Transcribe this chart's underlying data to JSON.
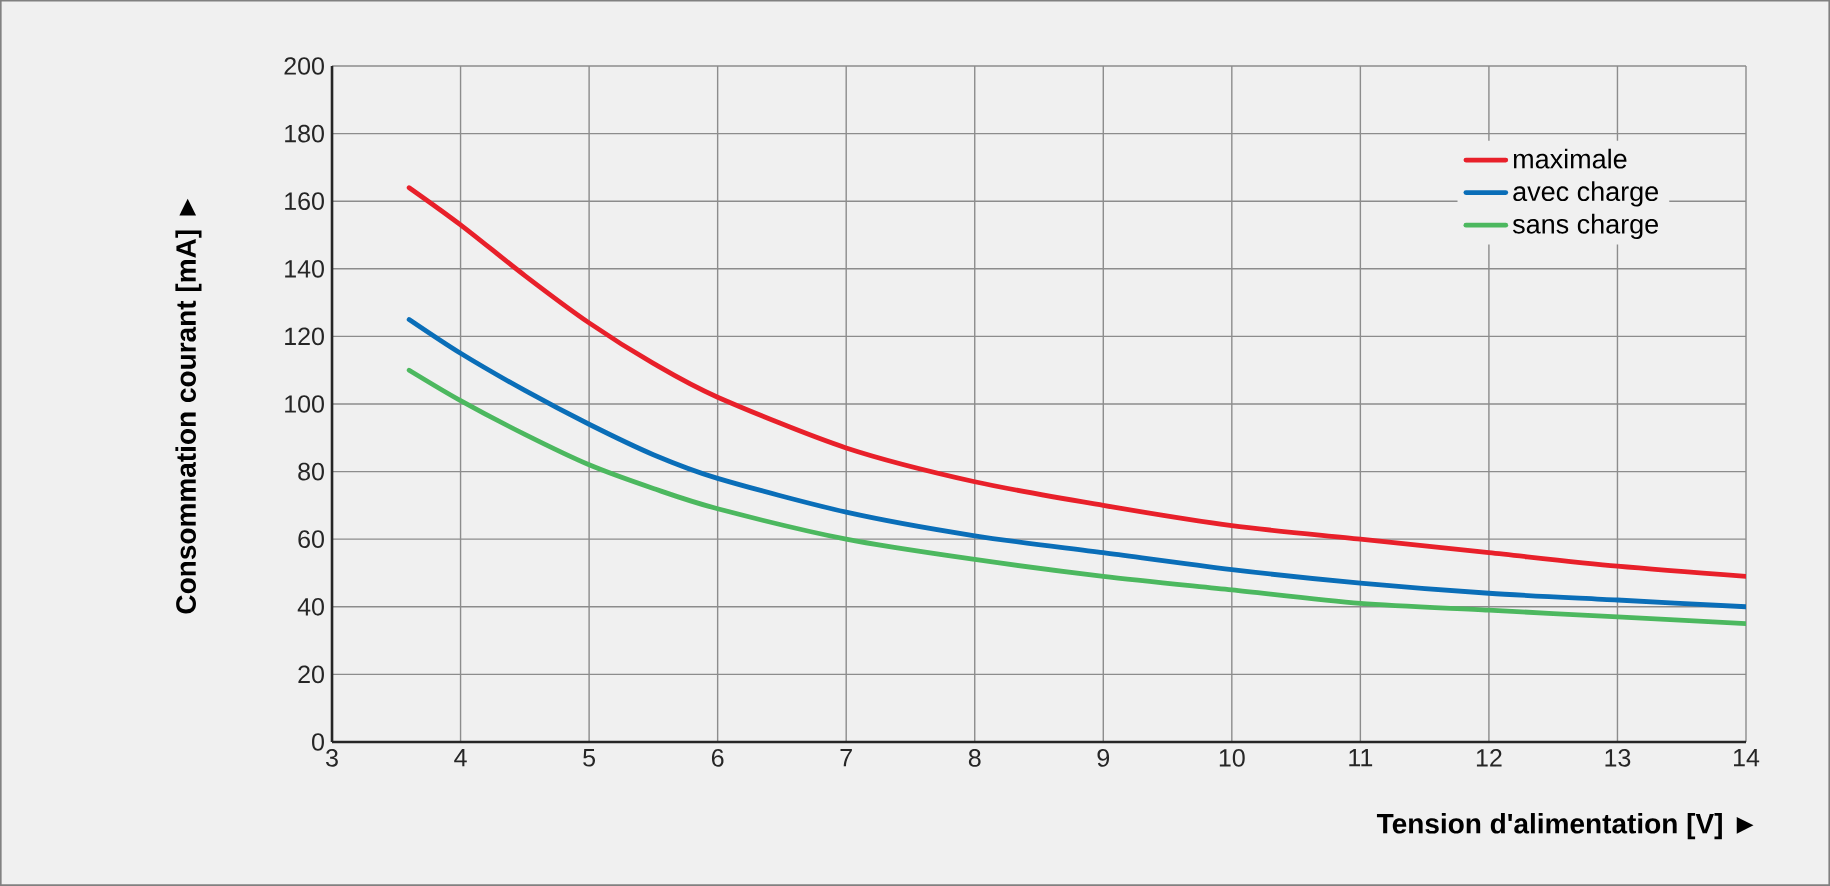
{
  "chart_data": {
    "type": "line",
    "xlabel": "Tension d'alimentation [V] ►",
    "ylabel": "Consommation courant [mA] ►",
    "x": [
      3.6,
      4,
      4.5,
      5,
      5.5,
      6,
      7,
      8,
      9,
      10,
      11,
      12,
      13,
      14
    ],
    "series": [
      {
        "name": "maximale",
        "color": "#e8202a",
        "values": [
          164,
          153,
          138,
          124,
          112,
          102,
          87,
          77,
          70,
          64,
          60,
          56,
          52,
          49
        ]
      },
      {
        "name": "avec charge",
        "color": "#0a6eb8",
        "values": [
          125,
          115,
          104,
          94,
          85,
          78,
          68,
          61,
          56,
          51,
          47,
          44,
          42,
          40
        ]
      },
      {
        "name": "sans charge",
        "color": "#4cb85f",
        "values": [
          110,
          101,
          91,
          82,
          75,
          69,
          60,
          54,
          49,
          45,
          41,
          39,
          37,
          35
        ]
      }
    ],
    "xlim": [
      3,
      14
    ],
    "xticks": [
      3,
      4,
      5,
      6,
      7,
      8,
      9,
      10,
      11,
      12,
      13,
      14
    ],
    "ylim": [
      0,
      200
    ],
    "yticks": [
      0,
      20,
      40,
      60,
      80,
      100,
      120,
      140,
      160,
      180,
      200
    ],
    "grid": true,
    "legend": "top right",
    "marker": "none",
    "line_style": "solid"
  }
}
